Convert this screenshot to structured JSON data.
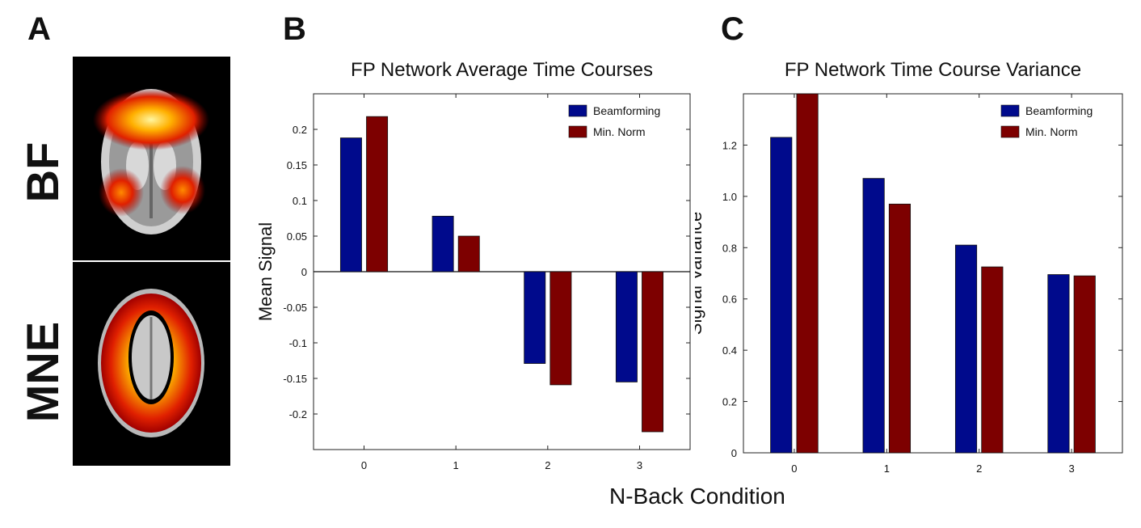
{
  "panels": {
    "a": {
      "letter": "A",
      "bf_label": "BF",
      "mne_label": "MNE"
    },
    "b": {
      "letter": "B"
    },
    "c": {
      "letter": "C"
    }
  },
  "shared_xlabel": "N-Back Condition",
  "colors": {
    "beamforming": "#000a8c",
    "min_norm": "#7d0000"
  },
  "chart_data": [
    {
      "type": "bar",
      "title": "FP Network Average Time Courses",
      "xlabel": "N-Back Condition",
      "ylabel": "Mean Signal",
      "categories": [
        "0",
        "1",
        "2",
        "3"
      ],
      "series": [
        {
          "name": "Beamforming",
          "values": [
            0.188,
            0.078,
            -0.129,
            -0.155
          ]
        },
        {
          "name": "Min. Norm",
          "values": [
            0.218,
            0.05,
            -0.159,
            -0.225
          ]
        }
      ],
      "ylim": [
        -0.25,
        0.25
      ],
      "yticks": [
        0.2,
        0.15,
        0.1,
        0.05,
        0,
        -0.05,
        -0.1,
        -0.15,
        -0.2
      ],
      "ytick_labels": [
        "0.2",
        "0.15",
        "0.1",
        "0.05",
        "0",
        "-0.05",
        "-0.1",
        "-0.15",
        "-0.2"
      ],
      "legend": "top-right",
      "grid": false
    },
    {
      "type": "bar",
      "title": "FP Network Time Course Variance",
      "xlabel": "N-Back Condition",
      "ylabel": "Signal Variance",
      "categories": [
        "0",
        "1",
        "2",
        "3"
      ],
      "series": [
        {
          "name": "Beamforming",
          "values": [
            1.23,
            1.07,
            0.81,
            0.695
          ]
        },
        {
          "name": "Min. Norm",
          "values": [
            1.4,
            0.97,
            0.725,
            0.69
          ]
        }
      ],
      "ylim": [
        0,
        1.4
      ],
      "yticks": [
        0,
        0.2,
        0.4,
        0.6,
        0.8,
        1.0,
        1.2
      ],
      "ytick_labels": [
        "0",
        "0.2",
        "0.4",
        "0.6",
        "0.8",
        "1.0",
        "1.2"
      ],
      "legend": "top-right",
      "grid": false
    }
  ]
}
